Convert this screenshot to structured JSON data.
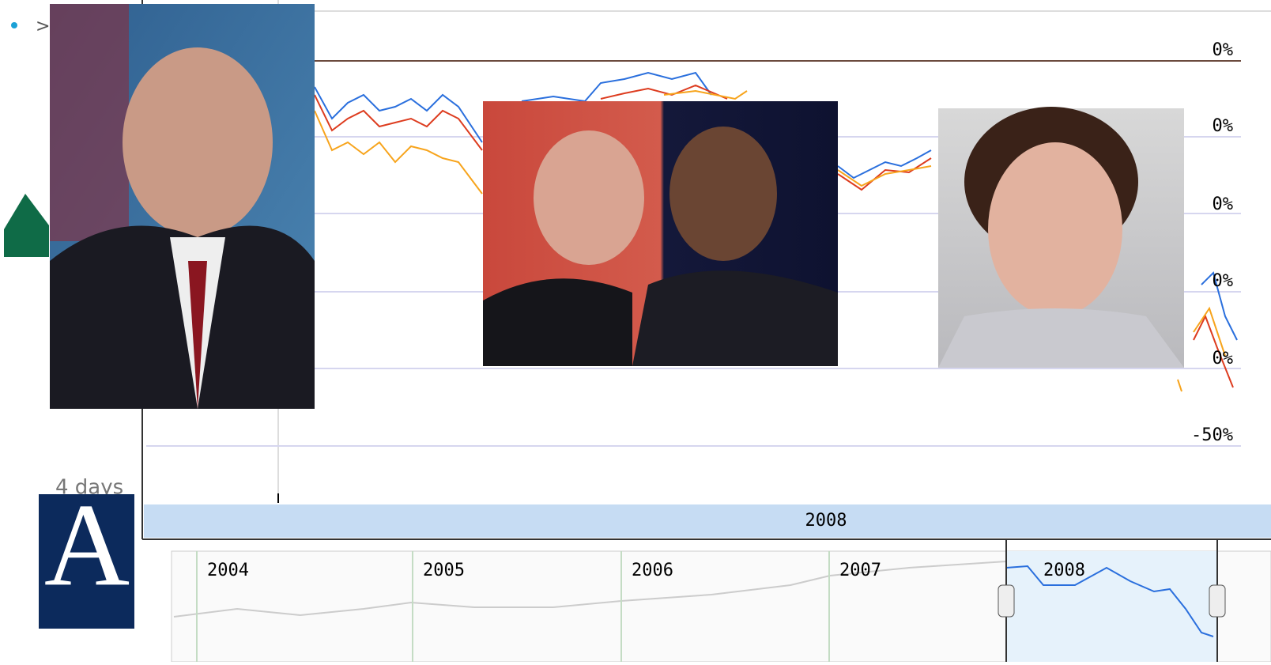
{
  "slide": {
    "bullet": ">",
    "partial_text": "4 days",
    "logo_letter": "A"
  },
  "chart": {
    "y_labels": [
      "0%",
      "0%",
      "0%",
      "0%",
      "0%",
      "-50%"
    ],
    "period_label": "2008"
  },
  "timeline": {
    "years": [
      "2004",
      "2005",
      "2006",
      "2007",
      "2008"
    ]
  }
}
